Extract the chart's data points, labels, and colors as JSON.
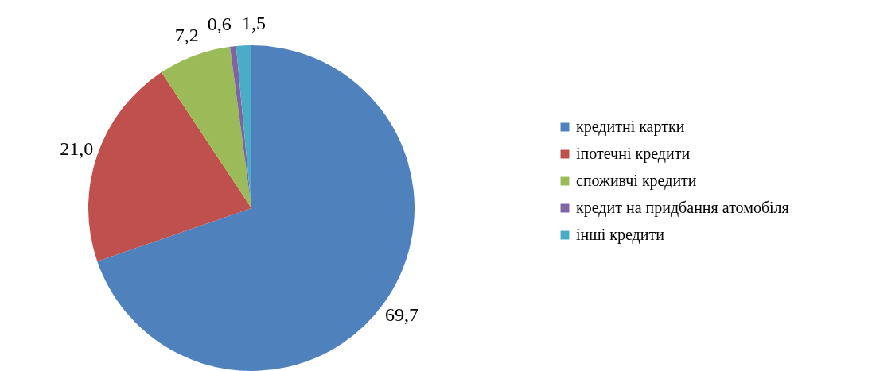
{
  "chart_data": {
    "type": "pie",
    "categories": [
      "кредитні картки",
      "іпотечні кредити",
      "споживчі кредити",
      "кредит на придбання атомобіля",
      "інші кредити"
    ],
    "values": [
      69.7,
      21.0,
      7.2,
      0.6,
      1.5
    ],
    "value_labels": [
      "69,7",
      "21,0",
      "7,2",
      "0,6",
      "1,5"
    ],
    "colors": [
      "#4f81bd",
      "#c0504d",
      "#9bbb59",
      "#8064a2",
      "#4bacc6"
    ],
    "legend": "right"
  }
}
